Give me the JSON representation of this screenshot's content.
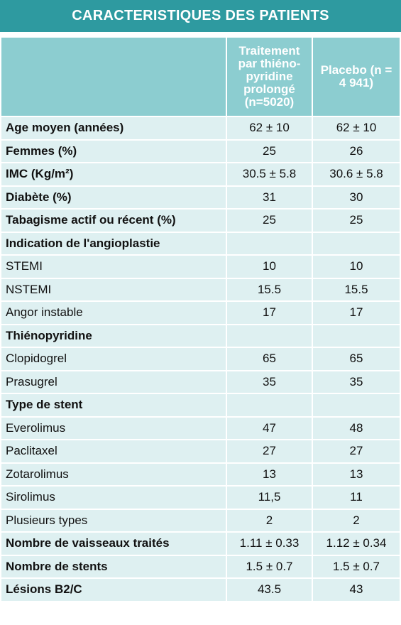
{
  "title": "CARACTERISTIQUES DES PATIENTS",
  "columns": {
    "treatment": "Traitement par thiéno-pyridine prolongé (n=5020)",
    "placebo": "Placebo (n = 4 941)"
  },
  "rows": [
    {
      "label": "Age moyen (années)",
      "treatment": "62 ± 10",
      "placebo": "62 ± 10",
      "bold": true
    },
    {
      "label": "Femmes (%)",
      "treatment": "25",
      "placebo": "26",
      "bold": true
    },
    {
      "label": "IMC (Kg/m²)",
      "treatment": "30.5 ± 5.8",
      "placebo": "30.6 ± 5.8",
      "bold": true
    },
    {
      "label": "Diabète (%)",
      "treatment": "31",
      "placebo": "30",
      "bold": true
    },
    {
      "label": "Tabagisme actif ou récent (%)",
      "treatment": "25",
      "placebo": "25",
      "bold": true
    },
    {
      "label": "Indication de l'angioplastie",
      "treatment": "",
      "placebo": "",
      "bold": true
    },
    {
      "label": "STEMI",
      "treatment": "10",
      "placebo": "10",
      "bold": false
    },
    {
      "label": "NSTEMI",
      "treatment": "15.5",
      "placebo": "15.5",
      "bold": false
    },
    {
      "label": "Angor instable",
      "treatment": "17",
      "placebo": "17",
      "bold": false
    },
    {
      "label": "Thiénopyridine",
      "treatment": "",
      "placebo": "",
      "bold": true
    },
    {
      "label": "Clopidogrel",
      "treatment": "65",
      "placebo": "65",
      "bold": false
    },
    {
      "label": "Prasugrel",
      "treatment": "35",
      "placebo": "35",
      "bold": false
    },
    {
      "label": "Type de stent",
      "treatment": "",
      "placebo": "",
      "bold": true
    },
    {
      "label": "Everolimus",
      "treatment": "47",
      "placebo": "48",
      "bold": false
    },
    {
      "label": "Paclitaxel",
      "treatment": "27",
      "placebo": "27",
      "bold": false
    },
    {
      "label": "Zotarolimus",
      "treatment": "13",
      "placebo": "13",
      "bold": false
    },
    {
      "label": "Sirolimus",
      "treatment": "11,5",
      "placebo": "11",
      "bold": false
    },
    {
      "label": "Plusieurs types",
      "treatment": "2",
      "placebo": "2",
      "bold": false
    },
    {
      "label": "Nombre de vaisseaux traités",
      "treatment": "1.11 ± 0.33",
      "placebo": "1.12 ± 0.34",
      "bold": true
    },
    {
      "label": "Nombre de stents",
      "treatment": "1.5 ± 0.7",
      "placebo": "1.5 ± 0.7",
      "bold": true
    },
    {
      "label": "Lésions B2/C",
      "treatment": "43.5",
      "placebo": "43",
      "bold": true
    }
  ]
}
